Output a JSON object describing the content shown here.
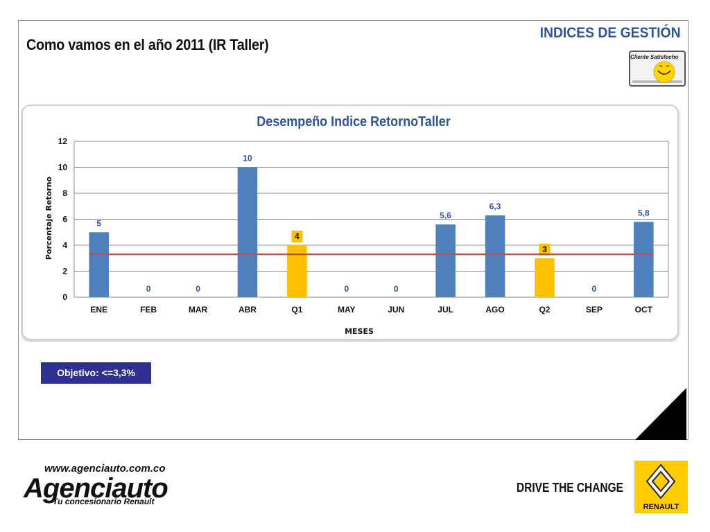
{
  "header": {
    "title": "Como vamos en el año 2011 (IR Taller)",
    "section": "INDICES DE GESTIÓN",
    "badge_text": "Cliente Satisfecho"
  },
  "objective_label": "Objetivo: <=3,3%",
  "footer": {
    "url": "www.agenciauto.com.co",
    "brand": "Agenciauto",
    "tagline": "Tu concesionario Renault",
    "slogan": "DRIVE THE CHANGE",
    "logo_word": "RENAULT"
  },
  "colors": {
    "bar_month": "#4f81bd",
    "bar_quarter": "#ffc000",
    "target_line": "#c0504d",
    "title": "#2f5597",
    "objective_bg": "#2e3192"
  },
  "chart_data": {
    "type": "bar",
    "title": "Desempeño Indice RetornoTaller",
    "xlabel": "MESES",
    "ylabel": "Porcentaje Retorno",
    "categories": [
      "ENE",
      "FEB",
      "MAR",
      "ABR",
      "Q1",
      "MAY",
      "JUN",
      "JUL",
      "AGO",
      "Q2",
      "SEP",
      "OCT"
    ],
    "values": [
      5,
      0,
      0,
      10,
      4,
      0,
      0,
      5.6,
      6.3,
      3,
      0,
      5.8
    ],
    "value_labels": [
      "5",
      "0",
      "0",
      "10",
      "4",
      "0",
      "0",
      "5,6",
      "6,3",
      "3",
      "0",
      "5,8"
    ],
    "quarter_categories": [
      "Q1",
      "Q2"
    ],
    "target": 3.3,
    "ylim": [
      0,
      12
    ],
    "yticks": [
      0,
      2,
      4,
      6,
      8,
      10,
      12
    ],
    "grid": true
  }
}
